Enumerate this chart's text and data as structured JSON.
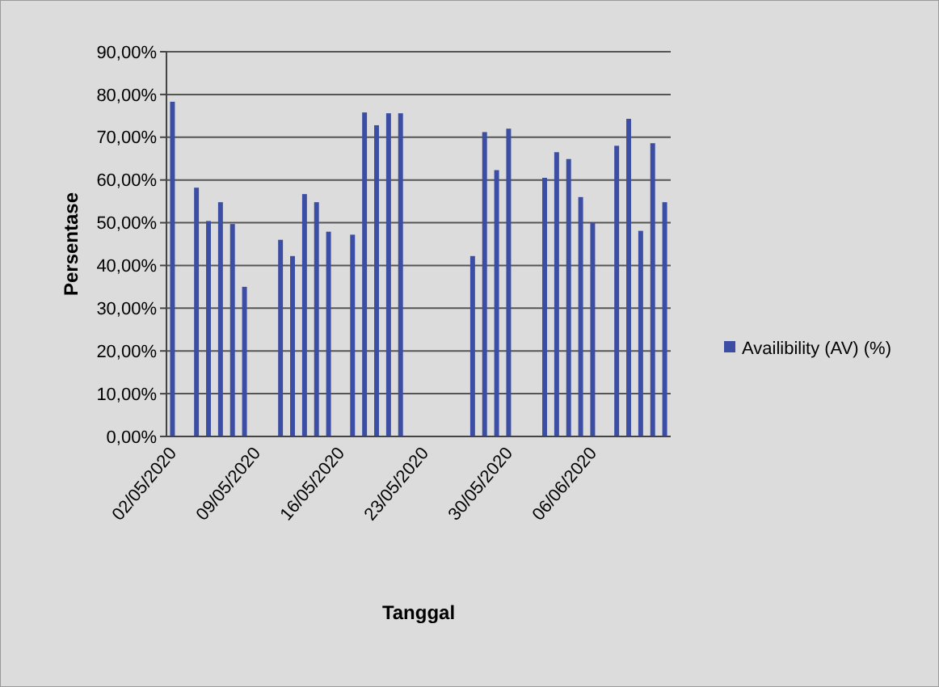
{
  "chart_data": {
    "type": "bar",
    "xlabel": "Tanggal",
    "ylabel": "Persentase",
    "categories": [
      "02/05/2020",
      null,
      null,
      null,
      null,
      null,
      null,
      "09/05/2020",
      null,
      null,
      null,
      null,
      null,
      null,
      "16/05/2020",
      null,
      null,
      null,
      null,
      null,
      null,
      "23/05/2020",
      null,
      null,
      null,
      null,
      null,
      null,
      "30/05/2020",
      null,
      null,
      null,
      null,
      null,
      null,
      "06/06/2020",
      null,
      null,
      null,
      null,
      null,
      null
    ],
    "series": [
      {
        "name": "Availibility  (AV) (%)",
        "color": "#3b4ea3",
        "values": [
          78.3,
          null,
          58.2,
          50.4,
          54.8,
          49.7,
          35,
          null,
          null,
          46,
          42.2,
          56.7,
          54.8,
          47.9,
          null,
          47.2,
          75.8,
          72.8,
          75.6,
          75.6,
          null,
          null,
          null,
          null,
          null,
          42.2,
          71.2,
          62.3,
          72,
          null,
          null,
          60.5,
          66.5,
          64.9,
          56,
          50.1,
          null,
          68,
          74.3,
          48.1,
          68.6,
          54.8
        ]
      }
    ],
    "ylim": [
      0,
      90
    ],
    "yticks": [
      {
        "value": 0,
        "label": "0,00%"
      },
      {
        "value": 10,
        "label": "10,00%"
      },
      {
        "value": 20,
        "label": "20,00%"
      },
      {
        "value": 30,
        "label": "30,00%"
      },
      {
        "value": 40,
        "label": "40,00%"
      },
      {
        "value": 50,
        "label": "50,00%"
      },
      {
        "value": 60,
        "label": "60,00%"
      },
      {
        "value": 70,
        "label": "70,00%"
      },
      {
        "value": 80,
        "label": "80,00%"
      },
      {
        "value": 90,
        "label": "90,00%"
      }
    ],
    "grid": "y",
    "legend": "right"
  }
}
